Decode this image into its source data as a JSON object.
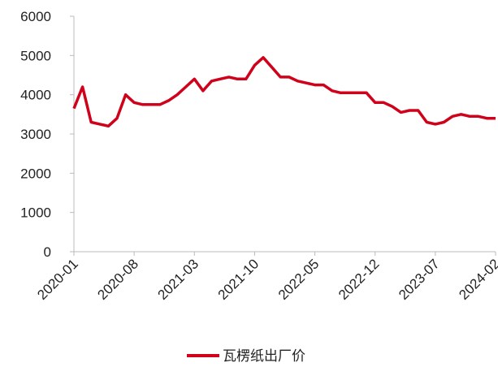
{
  "chart_data": {
    "type": "line",
    "x": [
      "2020-01",
      "2020-02",
      "2020-03",
      "2020-04",
      "2020-05",
      "2020-06",
      "2020-07",
      "2020-08",
      "2020-09",
      "2020-10",
      "2020-11",
      "2020-12",
      "2021-01",
      "2021-02",
      "2021-03",
      "2021-04",
      "2021-05",
      "2021-06",
      "2021-07",
      "2021-08",
      "2021-09",
      "2021-10",
      "2021-11",
      "2021-12",
      "2022-01",
      "2022-02",
      "2022-03",
      "2022-04",
      "2022-05",
      "2022-06",
      "2022-07",
      "2022-08",
      "2022-09",
      "2022-10",
      "2022-11",
      "2022-12",
      "2023-01",
      "2023-02",
      "2023-03",
      "2023-04",
      "2023-05",
      "2023-06",
      "2023-07",
      "2023-08",
      "2023-09",
      "2023-10",
      "2023-11",
      "2023-12",
      "2024-01",
      "2024-02"
    ],
    "series": [
      {
        "name": "瓦楞纸出厂价",
        "color": "#d0021b",
        "values": [
          3650,
          4200,
          3300,
          3250,
          3200,
          3400,
          4000,
          3800,
          3750,
          3750,
          3750,
          3850,
          4000,
          4200,
          4400,
          4100,
          4350,
          4400,
          4450,
          4400,
          4400,
          4750,
          4950,
          4700,
          4450,
          4450,
          4350,
          4300,
          4250,
          4250,
          4100,
          4050,
          4050,
          4050,
          4050,
          3800,
          3800,
          3700,
          3550,
          3600,
          3600,
          3300,
          3250,
          3300,
          3450,
          3500,
          3450,
          3450,
          3400,
          3400
        ]
      }
    ],
    "xlim": [
      "2020-01",
      "2024-02"
    ],
    "xticks": [
      "2020-01",
      "2020-08",
      "2021-03",
      "2021-10",
      "2022-05",
      "2022-12",
      "2023-07",
      "2024-02"
    ],
    "ylim": [
      0,
      6000
    ],
    "yticks": [
      0,
      1000,
      2000,
      3000,
      4000,
      5000,
      6000
    ],
    "legend": "bottom"
  }
}
